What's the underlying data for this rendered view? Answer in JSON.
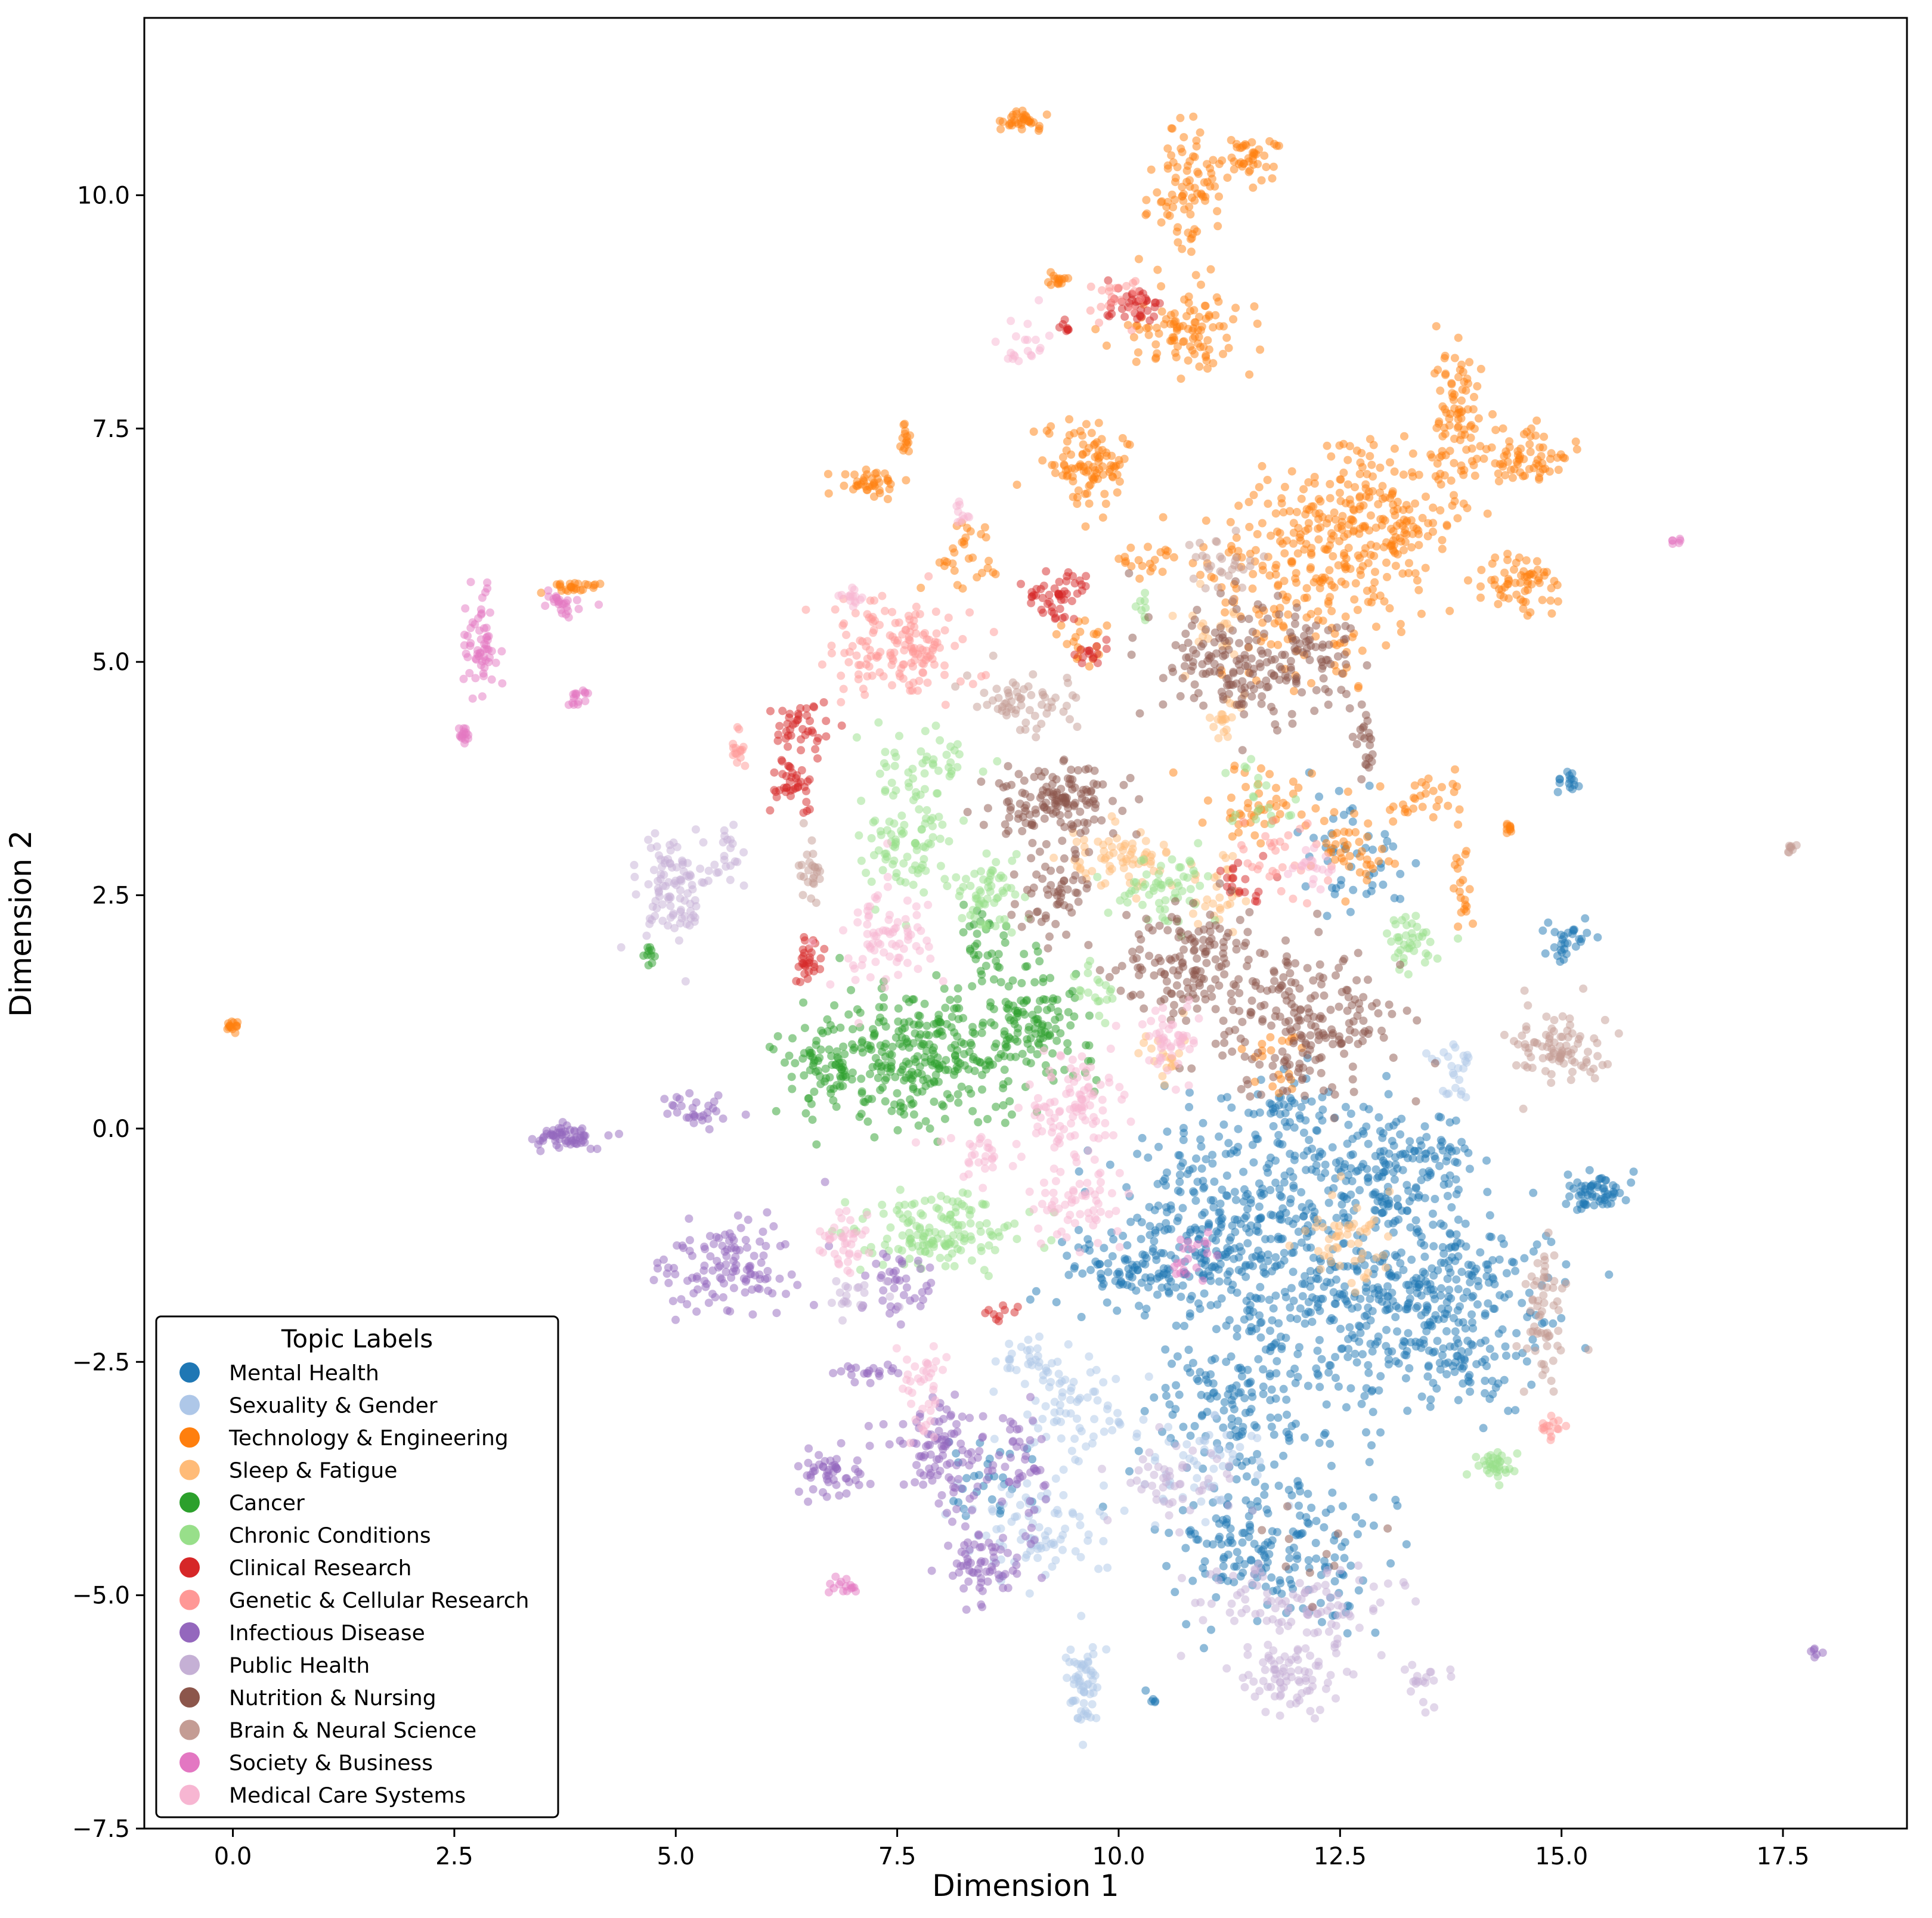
{
  "chart_data": {
    "type": "scatter",
    "title": "",
    "xlabel": "Dimension 1",
    "ylabel": "Dimension 2",
    "xlim": [
      -1.0,
      18.9
    ],
    "ylim": [
      -7.5,
      11.9
    ],
    "xticks": [
      0.0,
      2.5,
      5.0,
      7.5,
      10.0,
      12.5,
      15.0,
      17.5
    ],
    "xtick_labels": [
      "0.0",
      "2.5",
      "5.0",
      "7.5",
      "10.0",
      "12.5",
      "15.0",
      "17.5"
    ],
    "yticks": [
      -7.5,
      -5.0,
      -2.5,
      0.0,
      2.5,
      5.0,
      7.5,
      10.0
    ],
    "ytick_labels": [
      "−7.5",
      "−5.0",
      "−2.5",
      "0.0",
      "2.5",
      "5.0",
      "7.5",
      "10.0"
    ],
    "legend_title": "Topic Labels",
    "legend_position": "lower-left",
    "series": [
      {
        "name": "Mental Health",
        "color": "#1f77b4",
        "clusters": [
          [
            11.2,
            -0.9,
            0.9,
            0.7,
            260
          ],
          [
            12.4,
            -1.9,
            1.2,
            0.8,
            300
          ],
          [
            13.7,
            -1.8,
            0.9,
            0.7,
            220
          ],
          [
            10.2,
            -1.5,
            0.7,
            0.4,
            120
          ],
          [
            11.3,
            -3.0,
            0.7,
            0.6,
            120
          ],
          [
            11.8,
            -4.5,
            0.9,
            0.6,
            200
          ],
          [
            12.9,
            -0.5,
            0.7,
            0.5,
            140
          ],
          [
            14.0,
            -2.6,
            0.3,
            0.3,
            40
          ],
          [
            15.4,
            -0.7,
            0.3,
            0.15,
            60
          ],
          [
            15.1,
            2.0,
            0.25,
            0.2,
            30
          ],
          [
            15.1,
            3.7,
            0.1,
            0.1,
            15
          ],
          [
            12.7,
            2.9,
            0.5,
            0.4,
            50
          ],
          [
            8.5,
            -3.7,
            0.4,
            0.3,
            30
          ],
          [
            12.0,
            0.1,
            0.6,
            0.4,
            60
          ],
          [
            13.5,
            -0.3,
            0.4,
            0.3,
            40
          ],
          [
            10.4,
            -6.1,
            0.05,
            0.05,
            5
          ]
        ]
      },
      {
        "name": "Sexuality & Gender",
        "color": "#aec7e8",
        "clusters": [
          [
            9.6,
            -5.9,
            0.15,
            0.35,
            60
          ],
          [
            9.1,
            -4.3,
            0.6,
            0.4,
            90
          ],
          [
            9.5,
            -3.0,
            0.5,
            0.4,
            70
          ],
          [
            9.0,
            -2.5,
            0.3,
            0.2,
            30
          ],
          [
            13.8,
            0.6,
            0.2,
            0.3,
            25
          ],
          [
            11.0,
            -3.6,
            0.5,
            0.4,
            50
          ]
        ]
      },
      {
        "name": "Technology & Engineering",
        "color": "#ff7f0e",
        "clusters": [
          [
            9.7,
            7.1,
            0.35,
            0.3,
            100
          ],
          [
            10.8,
            8.5,
            0.5,
            0.3,
            100
          ],
          [
            10.8,
            10.0,
            0.3,
            0.5,
            90
          ],
          [
            11.5,
            10.4,
            0.2,
            0.15,
            40
          ],
          [
            8.9,
            10.8,
            0.15,
            0.08,
            35
          ],
          [
            12.9,
            6.5,
            0.8,
            0.6,
            250
          ],
          [
            13.8,
            7.7,
            0.2,
            0.5,
            80
          ],
          [
            14.6,
            7.2,
            0.35,
            0.2,
            70
          ],
          [
            12.0,
            5.8,
            0.8,
            0.7,
            160
          ],
          [
            14.5,
            5.8,
            0.35,
            0.2,
            60
          ],
          [
            7.2,
            6.9,
            0.25,
            0.1,
            40
          ],
          [
            11.6,
            3.5,
            0.5,
            0.3,
            50
          ],
          [
            12.6,
            3.0,
            0.3,
            0.3,
            40
          ],
          [
            13.5,
            3.5,
            0.3,
            0.2,
            30
          ],
          [
            13.9,
            2.5,
            0.1,
            0.3,
            20
          ],
          [
            3.9,
            5.8,
            0.2,
            0.05,
            25
          ],
          [
            0.0,
            1.1,
            0.05,
            0.05,
            15
          ],
          [
            7.6,
            7.4,
            0.05,
            0.2,
            15
          ],
          [
            9.3,
            9.1,
            0.08,
            0.1,
            15
          ],
          [
            8.3,
            6.1,
            0.3,
            0.3,
            30
          ],
          [
            14.4,
            3.2,
            0.05,
            0.05,
            10
          ],
          [
            10.3,
            6.1,
            0.2,
            0.15,
            20
          ],
          [
            11.8,
            0.7,
            0.3,
            0.3,
            20
          ],
          [
            9.6,
            5.2,
            0.3,
            0.2,
            20
          ]
        ]
      },
      {
        "name": "Sleep & Fatigue",
        "color": "#ffbb78",
        "clusters": [
          [
            10.0,
            2.9,
            0.4,
            0.25,
            70
          ],
          [
            11.1,
            2.5,
            0.3,
            0.3,
            30
          ],
          [
            12.6,
            -1.2,
            0.4,
            0.4,
            50
          ],
          [
            11.2,
            4.4,
            0.2,
            0.2,
            20
          ],
          [
            11.0,
            5.3,
            0.3,
            0.3,
            20
          ],
          [
            10.5,
            0.8,
            0.2,
            0.2,
            20
          ]
        ]
      },
      {
        "name": "Cancer",
        "color": "#2ca02c",
        "clusters": [
          [
            7.8,
            0.8,
            0.9,
            0.5,
            300
          ],
          [
            9.0,
            1.1,
            0.5,
            0.5,
            120
          ],
          [
            6.6,
            0.6,
            0.3,
            0.3,
            60
          ],
          [
            8.5,
            2.0,
            0.2,
            0.3,
            30
          ],
          [
            4.7,
            1.9,
            0.05,
            0.1,
            10
          ]
        ]
      },
      {
        "name": "Chronic Conditions",
        "color": "#98df8a",
        "clusters": [
          [
            8.0,
            -1.1,
            0.6,
            0.3,
            150
          ],
          [
            7.6,
            3.0,
            0.4,
            0.4,
            80
          ],
          [
            8.5,
            2.5,
            0.3,
            0.3,
            60
          ],
          [
            10.5,
            2.6,
            0.4,
            0.3,
            60
          ],
          [
            13.3,
            2.0,
            0.2,
            0.2,
            40
          ],
          [
            14.2,
            -3.6,
            0.2,
            0.1,
            35
          ],
          [
            7.8,
            3.9,
            0.4,
            0.3,
            50
          ],
          [
            9.7,
            1.5,
            0.2,
            0.2,
            20
          ],
          [
            11.6,
            3.5,
            0.3,
            0.3,
            20
          ],
          [
            10.3,
            5.6,
            0.05,
            0.1,
            8
          ]
        ]
      },
      {
        "name": "Clinical Research",
        "color": "#d62728",
        "clusters": [
          [
            6.4,
            4.3,
            0.2,
            0.2,
            40
          ],
          [
            6.3,
            3.7,
            0.2,
            0.2,
            40
          ],
          [
            6.5,
            1.8,
            0.1,
            0.2,
            30
          ],
          [
            9.3,
            5.7,
            0.3,
            0.2,
            50
          ],
          [
            10.2,
            8.8,
            0.2,
            0.15,
            40
          ],
          [
            9.7,
            5.1,
            0.1,
            0.1,
            15
          ],
          [
            11.4,
            2.6,
            0.2,
            0.2,
            20
          ],
          [
            9.4,
            8.6,
            0.05,
            0.05,
            8
          ],
          [
            8.7,
            -2.0,
            0.2,
            0.1,
            10
          ]
        ]
      },
      {
        "name": "Genetic & Cellular Research",
        "color": "#ff9896",
        "clusters": [
          [
            7.5,
            5.2,
            0.5,
            0.4,
            150
          ],
          [
            5.7,
            4.0,
            0.1,
            0.2,
            15
          ],
          [
            14.9,
            -3.2,
            0.1,
            0.1,
            15
          ],
          [
            10.0,
            8.9,
            0.2,
            0.15,
            20
          ],
          [
            11.9,
            2.9,
            0.3,
            0.3,
            30
          ]
        ]
      },
      {
        "name": "Infectious Disease",
        "color": "#9467bd",
        "clusters": [
          [
            5.6,
            -1.5,
            0.6,
            0.4,
            120
          ],
          [
            7.5,
            -1.7,
            0.3,
            0.3,
            40
          ],
          [
            6.8,
            -3.7,
            0.3,
            0.2,
            50
          ],
          [
            8.0,
            -3.5,
            0.4,
            0.4,
            100
          ],
          [
            8.5,
            -4.7,
            0.3,
            0.3,
            70
          ],
          [
            8.9,
            -3.5,
            0.2,
            0.4,
            40
          ],
          [
            3.8,
            -0.1,
            0.3,
            0.1,
            60
          ],
          [
            5.2,
            0.2,
            0.3,
            0.15,
            30
          ],
          [
            7.2,
            -2.6,
            0.3,
            0.1,
            20
          ],
          [
            17.9,
            -5.6,
            0.05,
            0.05,
            6
          ]
        ]
      },
      {
        "name": "Public Health",
        "color": "#c5b0d5",
        "clusters": [
          [
            5.0,
            2.6,
            0.3,
            0.4,
            100
          ],
          [
            11.9,
            -5.9,
            0.4,
            0.3,
            80
          ],
          [
            12.0,
            -5.1,
            0.8,
            0.3,
            100
          ],
          [
            10.6,
            -3.8,
            0.5,
            0.3,
            50
          ],
          [
            5.6,
            2.9,
            0.1,
            0.3,
            20
          ],
          [
            7.1,
            -1.8,
            0.3,
            0.2,
            20
          ],
          [
            13.4,
            -5.9,
            0.2,
            0.2,
            20
          ]
        ]
      },
      {
        "name": "Nutrition & Nursing",
        "color": "#8c564b",
        "clusters": [
          [
            9.3,
            3.5,
            0.5,
            0.3,
            150
          ],
          [
            10.8,
            1.8,
            0.6,
            0.5,
            150
          ],
          [
            12.1,
            1.1,
            0.7,
            0.6,
            200
          ],
          [
            11.3,
            5.0,
            0.6,
            0.5,
            150
          ],
          [
            12.3,
            5.0,
            0.4,
            0.4,
            60
          ],
          [
            9.3,
            2.5,
            0.3,
            0.3,
            50
          ],
          [
            12.3,
            -4.5,
            0.5,
            0.3,
            10
          ],
          [
            12.8,
            4.1,
            0.1,
            0.3,
            20
          ]
        ]
      },
      {
        "name": "Brain & Neural Science",
        "color": "#c49c94",
        "clusters": [
          [
            15.0,
            0.9,
            0.4,
            0.3,
            90
          ],
          [
            14.8,
            -2.0,
            0.2,
            0.6,
            60
          ],
          [
            8.9,
            4.6,
            0.5,
            0.2,
            60
          ],
          [
            6.5,
            2.8,
            0.1,
            0.3,
            25
          ],
          [
            17.6,
            3.0,
            0.05,
            0.05,
            8
          ],
          [
            11.2,
            6.0,
            0.3,
            0.3,
            30
          ]
        ]
      },
      {
        "name": "Society & Business",
        "color": "#e377c2",
        "clusters": [
          [
            2.8,
            5.2,
            0.15,
            0.4,
            60
          ],
          [
            2.6,
            4.2,
            0.05,
            0.1,
            15
          ],
          [
            3.7,
            5.6,
            0.2,
            0.1,
            25
          ],
          [
            3.9,
            4.6,
            0.1,
            0.1,
            15
          ],
          [
            6.9,
            -4.9,
            0.1,
            0.1,
            15
          ],
          [
            16.3,
            6.3,
            0.05,
            0.02,
            6
          ],
          [
            10.8,
            -1.4,
            0.2,
            0.2,
            20
          ]
        ]
      },
      {
        "name": "Medical Care Systems",
        "color": "#f7b6d2",
        "clusters": [
          [
            9.5,
            0.2,
            0.4,
            0.4,
            100
          ],
          [
            9.5,
            -0.8,
            0.4,
            0.3,
            60
          ],
          [
            7.4,
            2.1,
            0.4,
            0.4,
            80
          ],
          [
            6.9,
            -1.2,
            0.2,
            0.3,
            40
          ],
          [
            7.8,
            -2.8,
            0.2,
            0.4,
            40
          ],
          [
            10.6,
            0.9,
            0.3,
            0.3,
            50
          ],
          [
            8.5,
            -0.3,
            0.3,
            0.2,
            30
          ],
          [
            7.0,
            5.7,
            0.1,
            0.1,
            15
          ],
          [
            8.9,
            8.4,
            0.2,
            0.2,
            20
          ],
          [
            8.2,
            6.6,
            0.1,
            0.1,
            10
          ],
          [
            12.2,
            2.8,
            0.2,
            0.2,
            20
          ]
        ]
      }
    ]
  }
}
